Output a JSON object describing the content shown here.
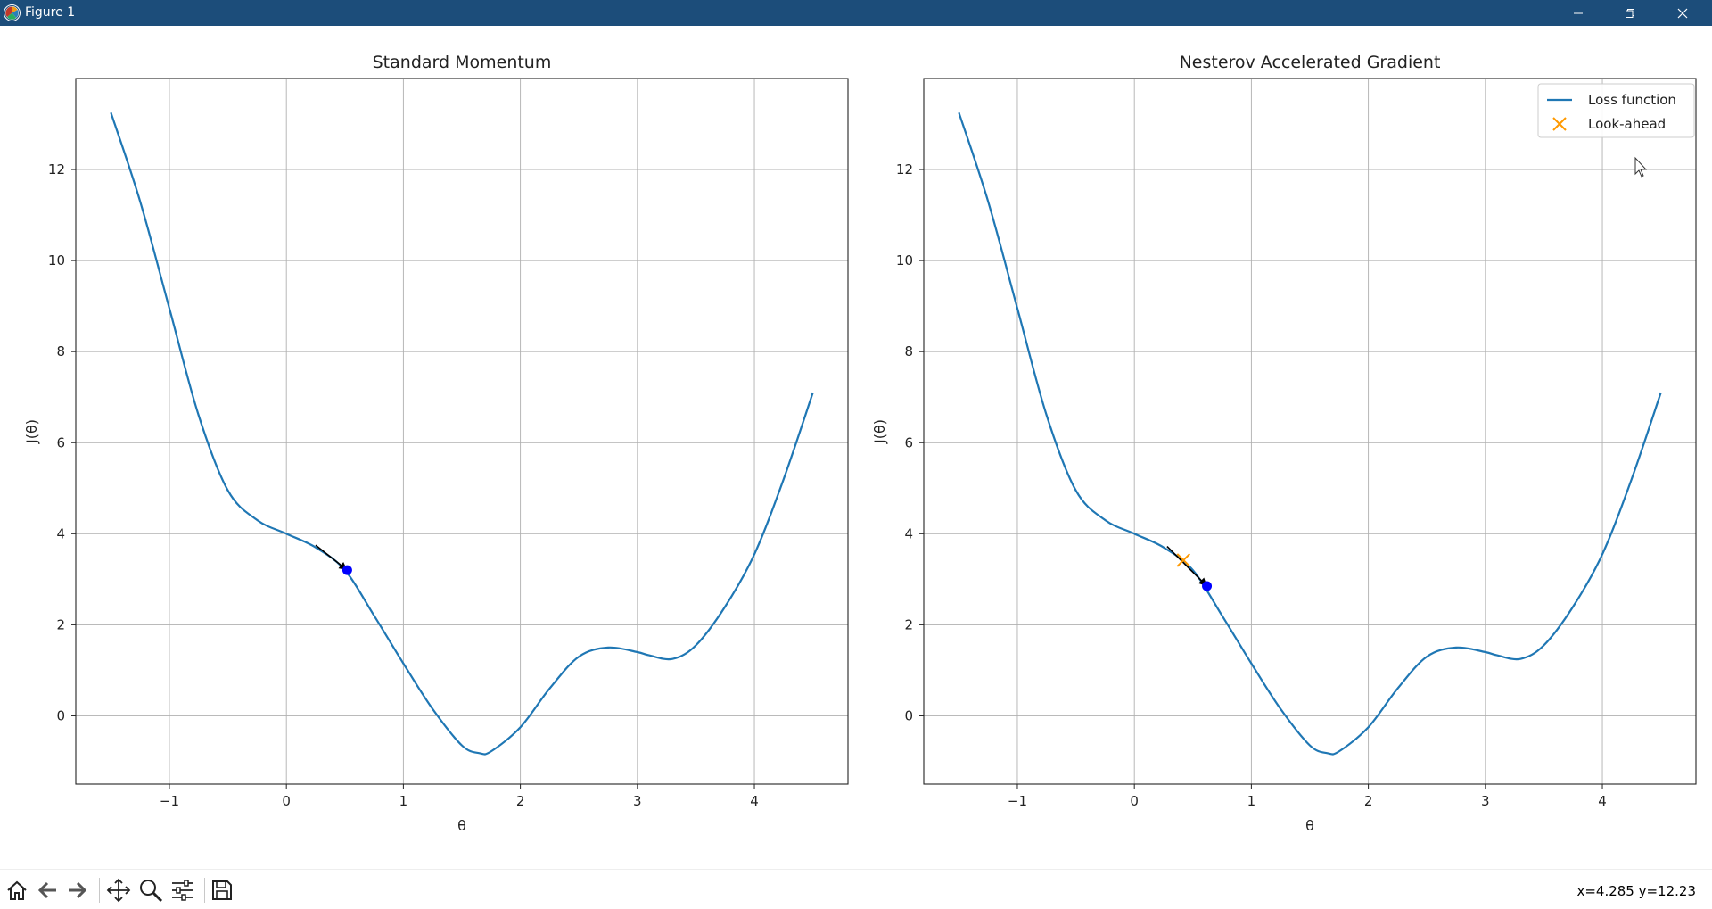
{
  "window": {
    "title": "Figure 1",
    "titlebar_color": "#1c4d7a",
    "icons": [
      "app-icon",
      "minimize-icon",
      "maximize-icon",
      "close-icon"
    ]
  },
  "toolbar": {
    "tools": [
      "home-icon",
      "back-icon",
      "forward-icon",
      "pan-icon",
      "zoom-icon",
      "configure-subplots-icon",
      "save-icon"
    ],
    "coords_text": "x=4.285 y=12.23"
  },
  "chart_data": [
    {
      "type": "line",
      "title": "Standard Momentum",
      "xlabel": "θ",
      "ylabel": "J(θ)",
      "xlim": [
        -1.8,
        4.8
      ],
      "ylim": [
        -1.5,
        14
      ],
      "xticks": [
        -1,
        0,
        1,
        2,
        3,
        4
      ],
      "xtick_labels": [
        "−1",
        "0",
        "1",
        "2",
        "3",
        "4"
      ],
      "yticks": [
        0,
        2,
        4,
        6,
        8,
        10,
        12
      ],
      "ytick_labels": [
        "0",
        "2",
        "4",
        "6",
        "8",
        "10",
        "12"
      ],
      "grid": true,
      "legend": null,
      "series": [
        {
          "color": "#1f77b4",
          "x": [
            -1.5,
            -1.25,
            -1.0,
            -0.75,
            -0.5,
            -0.25,
            0.0,
            0.25,
            0.5,
            0.75,
            1.0,
            1.25,
            1.5,
            1.65,
            1.75,
            2.0,
            2.25,
            2.5,
            2.75,
            3.0,
            3.1,
            3.3,
            3.5,
            3.75,
            4.0,
            4.25,
            4.5
          ],
          "y": [
            13.25,
            11.3,
            8.95,
            6.6,
            4.95,
            4.3,
            4.0,
            3.7,
            3.2,
            2.2,
            1.15,
            0.15,
            -0.65,
            -0.82,
            -0.78,
            -0.25,
            0.6,
            1.3,
            1.5,
            1.4,
            1.33,
            1.25,
            1.55,
            2.4,
            3.55,
            5.2,
            7.1
          ]
        }
      ],
      "point": {
        "x": 0.52,
        "y": 3.2,
        "color": "#0000ff"
      },
      "arrow": {
        "x0": 0.25,
        "y0": 3.75,
        "x1": 0.52,
        "y1": 3.2,
        "color": "#000000"
      }
    },
    {
      "type": "line",
      "title": "Nesterov Accelerated Gradient",
      "xlabel": "θ",
      "ylabel": "J(θ)",
      "xlim": [
        -1.8,
        4.8
      ],
      "ylim": [
        -1.5,
        14
      ],
      "xticks": [
        -1,
        0,
        1,
        2,
        3,
        4
      ],
      "xtick_labels": [
        "−1",
        "0",
        "1",
        "2",
        "3",
        "4"
      ],
      "yticks": [
        0,
        2,
        4,
        6,
        8,
        10,
        12
      ],
      "ytick_labels": [
        "0",
        "2",
        "4",
        "6",
        "8",
        "10",
        "12"
      ],
      "grid": true,
      "legend": {
        "placement": "top-right",
        "entries": [
          "Loss function",
          "Look-ahead"
        ]
      },
      "series": [
        {
          "name": "Loss function",
          "color": "#1f77b4",
          "x": [
            -1.5,
            -1.25,
            -1.0,
            -0.75,
            -0.5,
            -0.25,
            0.0,
            0.25,
            0.5,
            0.75,
            1.0,
            1.25,
            1.5,
            1.65,
            1.75,
            2.0,
            2.25,
            2.5,
            2.75,
            3.0,
            3.1,
            3.3,
            3.5,
            3.75,
            4.0,
            4.25,
            4.5
          ],
          "y": [
            13.25,
            11.3,
            8.95,
            6.6,
            4.95,
            4.3,
            4.0,
            3.7,
            3.2,
            2.2,
            1.15,
            0.15,
            -0.65,
            -0.82,
            -0.78,
            -0.25,
            0.6,
            1.3,
            1.5,
            1.4,
            1.33,
            1.25,
            1.55,
            2.4,
            3.55,
            5.2,
            7.1
          ]
        }
      ],
      "look_ahead": {
        "name": "Look-ahead",
        "x": 0.42,
        "y": 3.42,
        "color": "#ff9900"
      },
      "point": {
        "x": 0.62,
        "y": 2.85,
        "color": "#0000ff"
      },
      "arrow": {
        "x0": 0.28,
        "y0": 3.72,
        "x1": 0.62,
        "y1": 2.85,
        "color": "#000000"
      }
    }
  ]
}
